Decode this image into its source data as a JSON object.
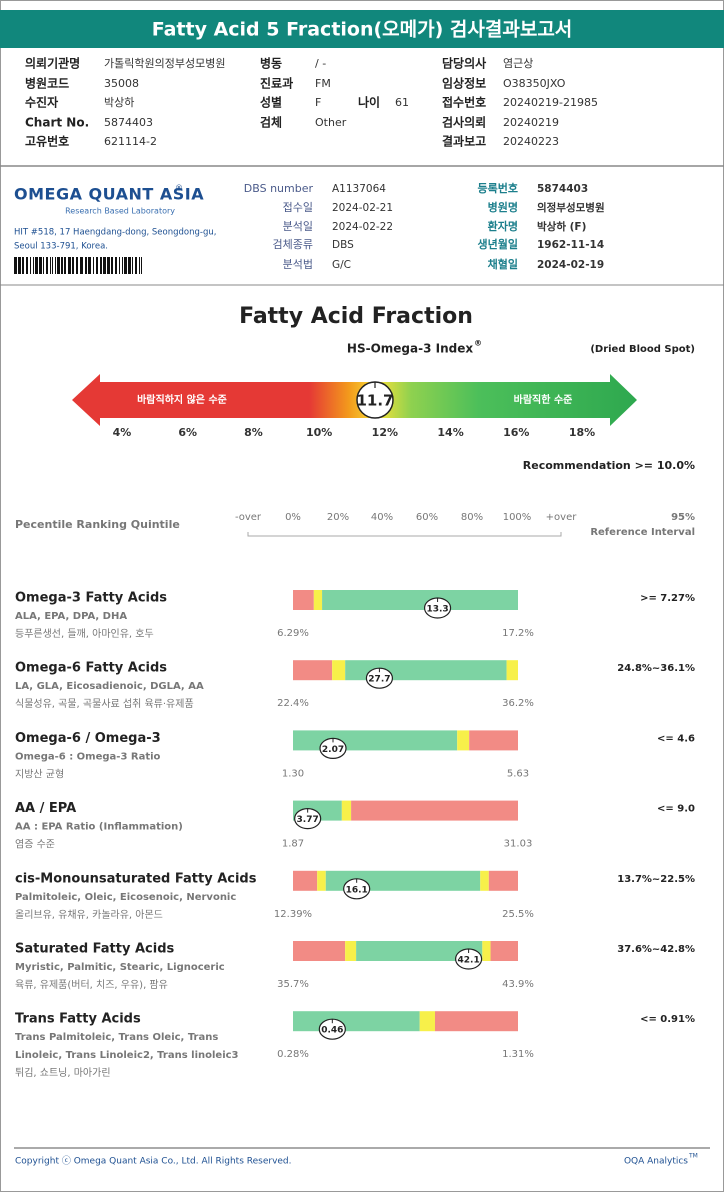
{
  "header": {
    "title": "Fatty Acid 5 Fraction(오메가) 검사결과보고서"
  },
  "patient_info": {
    "fields": [
      {
        "label": "의뢰기관명",
        "value": "가톨릭학원의정부성모병원"
      },
      {
        "label": "병동",
        "value": "/ -"
      },
      {
        "label": "담당의사",
        "value": "염근상"
      },
      {
        "label": "병원코드",
        "value": "35008"
      },
      {
        "label": "진료과",
        "value": "FM"
      },
      {
        "label": "임상정보",
        "value": "O38350JXO"
      },
      {
        "label": "수진자",
        "value": "박상하"
      },
      {
        "label": "성별",
        "value": "F"
      },
      {
        "label": "나이",
        "value": "61"
      },
      {
        "label": "접수번호",
        "value": "20240219-21985"
      },
      {
        "label": "Chart No.",
        "value": "5874403"
      },
      {
        "label": "검체",
        "value": "Other"
      },
      {
        "label": "검사의뢰",
        "value": "20240219"
      },
      {
        "label": "고유번호",
        "value": "621114-2"
      },
      {
        "label": "결과보고",
        "value": "20240223"
      }
    ]
  },
  "lab": {
    "logo": "OMEGA QUANT ASIA",
    "logo_mark": "®",
    "tagline": "Research Based Laboratory",
    "address": [
      "HIT #518, 17 Haengdang-dong, Seongdong-gu,",
      "Seoul 133-791, Korea."
    ],
    "sample_fields": [
      {
        "label": "DBS number",
        "value": "A1137064"
      },
      {
        "label": "접수일",
        "value": "2024-02-21"
      },
      {
        "label": "분석일",
        "value": "2024-02-22"
      },
      {
        "label": "검체종류",
        "value": "DBS"
      },
      {
        "label": "분석법",
        "value": "G/C"
      }
    ],
    "patient_fields": [
      {
        "label": "등록번호",
        "value": "5874403"
      },
      {
        "label": "병원명",
        "value": "의정부성모병원"
      },
      {
        "label": "환자명",
        "value": "박상하 (F)"
      },
      {
        "label": "생년월일",
        "value": "1962-11-14"
      },
      {
        "label": "채혈일",
        "value": "2024-02-19"
      }
    ]
  },
  "index_chart": {
    "title": "Fatty Acid Fraction",
    "subtitle": "HS-Omega-3 Index",
    "subtitle_mark": "®",
    "note": "(Dried Blood Spot)",
    "left_label": "바람직하지 않은 수준",
    "right_label": "바람직한 수준",
    "value": 11.7,
    "xticks": [
      {
        "value": 4,
        "label": "4%"
      },
      {
        "value": 6,
        "label": "6%"
      },
      {
        "value": 8,
        "label": "8%"
      },
      {
        "value": 10,
        "label": "10%"
      },
      {
        "value": 12,
        "label": "12%"
      },
      {
        "value": 14,
        "label": "14%"
      },
      {
        "value": 16,
        "label": "16%"
      },
      {
        "value": 18,
        "label": "18%"
      }
    ],
    "recommendation": "Recommendation  >= 10.0%"
  },
  "quintile": {
    "title": "Pecentile Ranking Quintile",
    "scale_labels": [
      "-over",
      "0%",
      "20%",
      "40%",
      "60%",
      "80%",
      "100%",
      "+over"
    ],
    "ref_title": "95%",
    "ref_subtitle": "Reference Interval"
  },
  "markers": [
    {
      "name": "Omega-3 Fatty Acids",
      "desc": [
        "ALA, EPA, DPA, DHA"
      ],
      "foods": "등푸른생선, 들깨, 아마인유, 호두",
      "value": 13.3,
      "range": [
        6.29,
        17.2
      ],
      "range_labels": [
        "6.29%",
        "17.2%"
      ],
      "breaks": [
        7.3,
        7.7
      ],
      "zone_colors": [
        "#f28b85",
        "#f7f04a",
        "#7dd3a3"
      ],
      "reference": ">= 7.27%"
    },
    {
      "name": "Omega-6 Fatty Acids",
      "desc": [
        "LA, GLA, Eicosadienoic, DGLA, AA"
      ],
      "foods": "식물성유, 곡물, 곡물사료 섭취 육류·유제품",
      "value": 27.7,
      "range": [
        22.4,
        36.2
      ],
      "range_labels": [
        "22.4%",
        "36.2%"
      ],
      "breaks": [
        24.8,
        25.6,
        35.5
      ],
      "zone_colors": [
        "#f28b85",
        "#f7f04a",
        "#7dd3a3",
        "#f7f04a"
      ],
      "reference": "24.8%~36.1%"
    },
    {
      "name": "Omega-6 / Omega-3",
      "desc": [
        "Omega-6 : Omega-3 Ratio"
      ],
      "foods": "지방산 균형",
      "value": 2.07,
      "range": [
        1.3,
        5.63
      ],
      "range_labels": [
        "1.30",
        "5.63"
      ],
      "breaks": [
        4.46,
        4.69
      ],
      "zone_colors": [
        "#7dd3a3",
        "#f7f04a",
        "#f28b85"
      ],
      "reference": "<= 4.6"
    },
    {
      "name": "AA / EPA",
      "desc": [
        "AA : EPA Ratio (Inflammation)"
      ],
      "foods": "염증 수준",
      "value": 3.77,
      "range": [
        1.87,
        31.03
      ],
      "range_labels": [
        "1.87",
        "31.03"
      ],
      "breaks": [
        8.2,
        9.4
      ],
      "zone_colors": [
        "#7dd3a3",
        "#f7f04a",
        "#f28b85"
      ],
      "reference": "<= 9.0"
    },
    {
      "name": "cis-Monounsaturated Fatty Acids",
      "desc": [
        "Palmitoleic, Oleic, Eicosenoic, Nervonic"
      ],
      "foods": "올리브유, 유채유, 카놀라유, 아몬드",
      "value": 16.1,
      "range": [
        12.39,
        25.5
      ],
      "range_labels": [
        "12.39%",
        "25.5%"
      ],
      "breaks": [
        13.8,
        14.3,
        23.3,
        23.8
      ],
      "zone_colors": [
        "#f28b85",
        "#f7f04a",
        "#7dd3a3",
        "#f7f04a",
        "#f28b85"
      ],
      "reference": "13.7%~22.5%"
    },
    {
      "name": "Saturated Fatty Acids",
      "desc": [
        "Myristic, Palmitic, Stearic, Lignoceric"
      ],
      "foods": "육류, 유제품(버터, 치즈, 우유), 팜유",
      "value": 42.1,
      "range": [
        35.7,
        43.9
      ],
      "range_labels": [
        "35.7%",
        "43.9%"
      ],
      "breaks": [
        37.6,
        38.0,
        42.6,
        42.9
      ],
      "zone_colors": [
        "#f28b85",
        "#f7f04a",
        "#7dd3a3",
        "#f7f04a",
        "#f28b85"
      ],
      "reference": "37.6%~42.8%"
    },
    {
      "name": "Trans Fatty Acids",
      "desc": [
        "Trans Palmitoleic, Trans Oleic, Trans",
        "Linoleic, Trans Linoleic2, Trans linoleic3"
      ],
      "foods": "튀김, 쇼트닝, 마아가린",
      "value": 0.46,
      "range": [
        0.28,
        1.31
      ],
      "range_labels": [
        "0.28%",
        "1.31%"
      ],
      "breaks": [
        0.86,
        0.93
      ],
      "zone_colors": [
        "#7dd3a3",
        "#f7f04a",
        "#f28b85"
      ],
      "reference": "<= 0.91%"
    }
  ],
  "footer": {
    "copyright": "Copyright ⓒ Omega Quant Asia Co., Ltd.  All Rights Reserved.",
    "brand": "OQA Analytics",
    "brand_mark": "TM"
  }
}
